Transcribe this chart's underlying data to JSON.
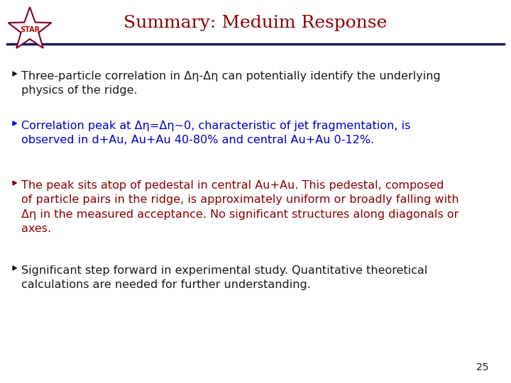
{
  "title": "Summary: Meduim Response",
  "title_color": "#8B0000",
  "title_fontsize": 18,
  "bg_color": "#ffffff",
  "line_color": "#1a1a5e",
  "bullet1_text": "Three-particle correlation in Δη-Δη can potentially identify the underlying\nphysics of the ridge.",
  "bullet2_text": "Correlation peak at Δη=Δη~0, characteristic of jet fragmentation, is\nobserved in d+Au, Au+Au 40-80% and central Au+Au 0-12%.",
  "bullet3_text": "The peak sits atop of pedestal in central Au+Au. This pedestal, composed\nof particle pairs in the ridge, is approximately uniform or broadly falling with\nΔη in the measured acceptance. No significant structures along diagonals or\naxes.",
  "bullet4_text": "Significant step forward in experimental study. Quantitative theoretical\ncalculations are needed for further understanding.",
  "bullet1_color": "#1a1a1a",
  "bullet2_color": "#0000cc",
  "bullet3_color": "#8B0000",
  "bullet4_color": "#1a1a1a",
  "bullet_marker": "►",
  "page_number": "25",
  "fontsize_body": 11.5,
  "star_outline_color": "#800020",
  "star_text_color": "#cc0000"
}
